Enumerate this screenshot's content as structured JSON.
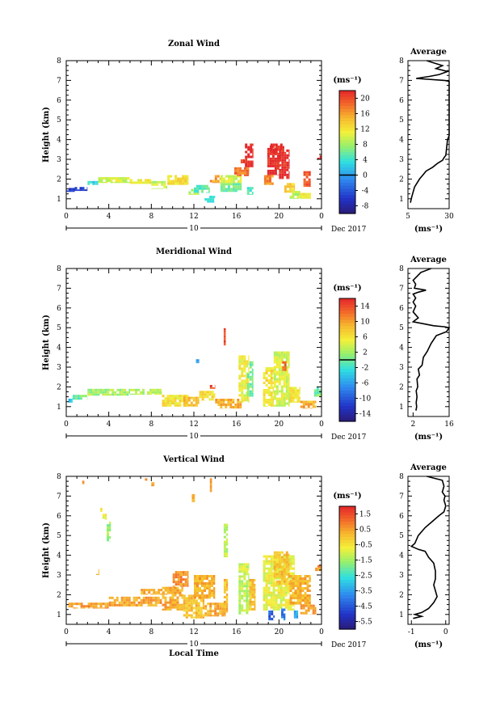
{
  "chart_data": [
    {
      "type": "heatmap",
      "title": "Zonal Wind",
      "ylabel": "Height (km)",
      "xlabel": "",
      "xticks": [
        "0",
        "4",
        "8",
        "12",
        "16",
        "20",
        "0"
      ],
      "xlim": [
        0,
        24
      ],
      "yticks": [
        "1",
        "2",
        "3",
        "4",
        "5",
        "6",
        "7",
        "8"
      ],
      "ylim": [
        0.5,
        8
      ],
      "day_label": "10",
      "month_label": "Dec 2017",
      "colorbar": {
        "unit": "(ms⁻¹)",
        "ticks": [
          "20",
          "16",
          "12",
          "8",
          "4",
          "0",
          "-4",
          "-8"
        ],
        "range": [
          -10,
          22
        ],
        "zero": 0
      },
      "profile": {
        "title": "Average",
        "xticks": [
          "5",
          "30"
        ],
        "xlim": [
          5,
          30
        ],
        "unit": "(ms⁻¹)",
        "points": [
          [
            16.4,
            8.0
          ],
          [
            20,
            7.9
          ],
          [
            26,
            7.75
          ],
          [
            22,
            7.6
          ],
          [
            29,
            7.45
          ],
          [
            24,
            7.3
          ],
          [
            18,
            7.2
          ],
          [
            10,
            7.1
          ],
          [
            27,
            7.0
          ],
          [
            30,
            6.95
          ],
          [
            30,
            6.8
          ],
          [
            30,
            6.5
          ],
          [
            30,
            6.0
          ],
          [
            30,
            5.0
          ],
          [
            30,
            4.2
          ],
          [
            29,
            4.0
          ],
          [
            28.5,
            3.6
          ],
          [
            28,
            3.2
          ],
          [
            27,
            3.1
          ],
          [
            26,
            2.95
          ],
          [
            23,
            2.8
          ],
          [
            20,
            2.6
          ],
          [
            16,
            2.4
          ],
          [
            14,
            2.2
          ],
          [
            12,
            2.0
          ],
          [
            9,
            1.6
          ],
          [
            8,
            1.3
          ],
          [
            7,
            1.0
          ],
          [
            6.5,
            0.8
          ]
        ]
      },
      "patches": [
        {
          "x0": 0.0,
          "x1": 0.8,
          "y0": 1.35,
          "y1": 1.55,
          "v": -6
        },
        {
          "x0": 0.8,
          "x1": 2.0,
          "y0": 1.4,
          "y1": 1.6,
          "v": -6
        },
        {
          "x0": 2.0,
          "x1": 3.0,
          "y0": 1.7,
          "y1": 1.9,
          "v": 3
        },
        {
          "x0": 3.0,
          "x1": 6.0,
          "y0": 1.8,
          "y1": 2.1,
          "v": 10
        },
        {
          "x0": 6.0,
          "x1": 8.0,
          "y0": 1.75,
          "y1": 2.0,
          "v": 11
        },
        {
          "x0": 8.0,
          "x1": 9.5,
          "y0": 1.5,
          "y1": 1.9,
          "v": 9
        },
        {
          "x0": 9.5,
          "x1": 11.5,
          "y0": 1.7,
          "y1": 2.2,
          "v": 12
        },
        {
          "x0": 11.5,
          "x1": 12.5,
          "y0": 1.2,
          "y1": 1.5,
          "v": 9
        },
        {
          "x0": 12.0,
          "x1": 13.5,
          "y0": 1.3,
          "y1": 1.7,
          "v": 5
        },
        {
          "x0": 13.0,
          "x1": 14.0,
          "y0": 0.8,
          "y1": 1.15,
          "v": 3
        },
        {
          "x0": 13.5,
          "x1": 14.5,
          "y0": 1.8,
          "y1": 2.2,
          "v": 16
        },
        {
          "x0": 14.5,
          "x1": 16.5,
          "y0": 1.35,
          "y1": 1.8,
          "v": 6
        },
        {
          "x0": 14.5,
          "x1": 16.5,
          "y0": 1.8,
          "y1": 2.2,
          "v": 10
        },
        {
          "x0": 15.8,
          "x1": 17.2,
          "y0": 2.15,
          "y1": 2.6,
          "v": 18
        },
        {
          "x0": 17.0,
          "x1": 17.6,
          "y0": 1.2,
          "y1": 1.6,
          "v": 5
        },
        {
          "x0": 16.8,
          "x1": 17.6,
          "y0": 2.6,
          "y1": 3.8,
          "v": 22
        },
        {
          "x0": 16.4,
          "x1": 16.8,
          "y0": 2.8,
          "y1": 3.0,
          "v": 20
        },
        {
          "x0": 18.6,
          "x1": 19.5,
          "y0": 1.7,
          "y1": 2.2,
          "v": 17
        },
        {
          "x0": 18.9,
          "x1": 20.1,
          "y0": 2.2,
          "y1": 3.7,
          "v": 22
        },
        {
          "x0": 19.2,
          "x1": 20.5,
          "y0": 3.3,
          "y1": 3.8,
          "v": 22
        },
        {
          "x0": 20.0,
          "x1": 21.0,
          "y0": 2.0,
          "y1": 3.5,
          "v": 22
        },
        {
          "x0": 20.5,
          "x1": 21.5,
          "y0": 1.3,
          "y1": 1.8,
          "v": 13
        },
        {
          "x0": 21.0,
          "x1": 22.0,
          "y0": 1.0,
          "y1": 1.4,
          "v": 9
        },
        {
          "x0": 22.0,
          "x1": 23.0,
          "y0": 1.0,
          "y1": 1.3,
          "v": 11
        },
        {
          "x0": 22.3,
          "x1": 23.0,
          "y0": 1.6,
          "y1": 2.4,
          "v": 19
        },
        {
          "x0": 23.6,
          "x1": 24.0,
          "y0": 3.0,
          "y1": 3.2,
          "v": 22
        }
      ]
    },
    {
      "type": "heatmap",
      "title": "Meridional Wind",
      "ylabel": "Height (km)",
      "xlabel": "",
      "xticks": [
        "0",
        "4",
        "8",
        "12",
        "16",
        "20",
        "0"
      ],
      "xlim": [
        0,
        24
      ],
      "yticks": [
        "1",
        "2",
        "3",
        "4",
        "5",
        "6",
        "7",
        "8"
      ],
      "ylim": [
        0.5,
        8
      ],
      "day_label": "10",
      "month_label": "Dec 2017",
      "colorbar": {
        "unit": "(ms⁻¹)",
        "ticks": [
          "14",
          "10",
          "6",
          "2",
          "-2",
          "-6",
          "-10",
          "-14"
        ],
        "range": [
          -16,
          16
        ],
        "zero": 0
      },
      "profile": {
        "title": "Average",
        "xticks": [
          "2",
          "16"
        ],
        "xlim": [
          0,
          16
        ],
        "unit": "(ms⁻¹)",
        "points": [
          [
            9,
            8.0
          ],
          [
            5,
            7.8
          ],
          [
            3.5,
            7.6
          ],
          [
            2,
            7.4
          ],
          [
            3,
            7.2
          ],
          [
            2.5,
            7.0
          ],
          [
            7,
            6.9
          ],
          [
            4,
            6.8
          ],
          [
            2,
            6.7
          ],
          [
            3,
            6.5
          ],
          [
            2,
            6.3
          ],
          [
            3,
            6.1
          ],
          [
            2,
            5.8
          ],
          [
            4,
            5.5
          ],
          [
            2,
            5.3
          ],
          [
            6,
            5.2
          ],
          [
            10,
            5.1
          ],
          [
            14,
            5.05
          ],
          [
            16,
            5.0
          ],
          [
            15,
            4.8
          ],
          [
            11,
            4.6
          ],
          [
            9,
            4.2
          ],
          [
            7.5,
            3.8
          ],
          [
            6,
            3.5
          ],
          [
            5.5,
            3.1
          ],
          [
            4,
            2.9
          ],
          [
            4.5,
            2.6
          ],
          [
            3.5,
            2.4
          ],
          [
            3.8,
            2.0
          ],
          [
            3.2,
            1.8
          ],
          [
            3.5,
            1.5
          ],
          [
            3.2,
            1.2
          ],
          [
            3.4,
            1.0
          ],
          [
            3.1,
            0.8
          ]
        ]
      },
      "patches": [
        {
          "x0": 0.2,
          "x1": 0.6,
          "y0": 1.2,
          "y1": 1.4,
          "v": -4
        },
        {
          "x0": 0.6,
          "x1": 2.0,
          "y0": 1.35,
          "y1": 1.6,
          "v": 0
        },
        {
          "x0": 2.0,
          "x1": 6.0,
          "y0": 1.55,
          "y1": 1.9,
          "v": 2
        },
        {
          "x0": 6.0,
          "x1": 9.0,
          "y0": 1.6,
          "y1": 1.9,
          "v": 3
        },
        {
          "x0": 9.0,
          "x1": 11.5,
          "y0": 1.0,
          "y1": 1.6,
          "v": 6
        },
        {
          "x0": 11.0,
          "x1": 12.5,
          "y0": 1.0,
          "y1": 1.5,
          "v": 8
        },
        {
          "x0": 12.5,
          "x1": 14.0,
          "y0": 1.3,
          "y1": 1.8,
          "v": 6
        },
        {
          "x0": 13.5,
          "x1": 14.0,
          "y0": 1.9,
          "y1": 2.1,
          "v": 14
        },
        {
          "x0": 14.0,
          "x1": 16.5,
          "y0": 0.9,
          "y1": 1.4,
          "v": 9
        },
        {
          "x0": 12.2,
          "x1": 12.5,
          "y0": 3.2,
          "y1": 3.4,
          "v": -6
        },
        {
          "x0": 14.8,
          "x1": 15.0,
          "y0": 4.1,
          "y1": 5.1,
          "v": 14
        },
        {
          "x0": 16.2,
          "x1": 17.2,
          "y0": 1.2,
          "y1": 3.6,
          "v": 5
        },
        {
          "x0": 17.0,
          "x1": 17.6,
          "y0": 1.5,
          "y1": 3.3,
          "v": 0
        },
        {
          "x0": 18.5,
          "x1": 19.5,
          "y0": 1.0,
          "y1": 3.0,
          "v": 6
        },
        {
          "x0": 19.5,
          "x1": 21.0,
          "y0": 1.0,
          "y1": 3.8,
          "v": 4
        },
        {
          "x0": 20.3,
          "x1": 20.7,
          "y0": 2.8,
          "y1": 3.3,
          "v": 13
        },
        {
          "x0": 21.0,
          "x1": 22.0,
          "y0": 1.2,
          "y1": 2.0,
          "v": 6
        },
        {
          "x0": 22.0,
          "x1": 23.5,
          "y0": 0.9,
          "y1": 1.3,
          "v": 9
        },
        {
          "x0": 23.3,
          "x1": 24.0,
          "y0": 1.5,
          "y1": 2.0,
          "v": 0
        }
      ]
    },
    {
      "type": "heatmap",
      "title": "Vertical Wind",
      "ylabel": "Height (km)",
      "xlabel": "Local Time",
      "xticks": [
        "0",
        "4",
        "8",
        "12",
        "16",
        "20",
        "0"
      ],
      "xlim": [
        0,
        24
      ],
      "yticks": [
        "1",
        "2",
        "3",
        "4",
        "5",
        "6",
        "7",
        "8"
      ],
      "ylim": [
        0.5,
        8
      ],
      "day_label": "10",
      "month_label": "Dec 2017",
      "colorbar": {
        "unit": "(ms⁻¹)",
        "ticks": [
          "1.5",
          "0.5",
          "-0.5",
          "-1.5",
          "-2.5",
          "-3.5",
          "-4.5",
          "-5.5"
        ],
        "range": [
          -6,
          2
        ],
        "zero": null
      },
      "profile": {
        "title": "Average",
        "xticks": [
          "-1",
          "0"
        ],
        "xlim": [
          -1.1,
          0.1
        ],
        "unit": "(ms⁻¹)",
        "points": [
          [
            -0.55,
            8.0
          ],
          [
            -0.1,
            7.8
          ],
          [
            -0.05,
            7.5
          ],
          [
            -0.1,
            7.2
          ],
          [
            -0.02,
            7.0
          ],
          [
            -0.05,
            6.8
          ],
          [
            0.0,
            6.5
          ],
          [
            -0.05,
            6.2
          ],
          [
            -0.2,
            6.0
          ],
          [
            -0.4,
            5.7
          ],
          [
            -0.6,
            5.4
          ],
          [
            -0.8,
            5.0
          ],
          [
            -0.9,
            4.6
          ],
          [
            -1.0,
            4.45
          ],
          [
            -0.8,
            4.3
          ],
          [
            -0.6,
            4.2
          ],
          [
            -0.5,
            3.9
          ],
          [
            -0.35,
            3.6
          ],
          [
            -0.3,
            3.2
          ],
          [
            -0.3,
            2.8
          ],
          [
            -0.35,
            2.5
          ],
          [
            -0.3,
            2.2
          ],
          [
            -0.25,
            1.9
          ],
          [
            -0.35,
            1.6
          ],
          [
            -0.5,
            1.3
          ],
          [
            -0.7,
            1.1
          ],
          [
            -0.9,
            1.0
          ],
          [
            -0.7,
            0.9
          ],
          [
            -0.95,
            0.8
          ]
        ]
      },
      "patches": [
        {
          "x0": 1.5,
          "x1": 1.7,
          "y0": 7.6,
          "y1": 7.9,
          "v": 0.5
        },
        {
          "x0": 7.4,
          "x1": 7.7,
          "y0": 7.7,
          "y1": 7.9,
          "v": 0.5
        },
        {
          "x0": 8.0,
          "x1": 8.3,
          "y0": 7.5,
          "y1": 7.7,
          "v": 0.5
        },
        {
          "x0": 11.8,
          "x1": 12.1,
          "y0": 6.7,
          "y1": 7.1,
          "v": 0.5
        },
        {
          "x0": 13.5,
          "x1": 13.7,
          "y0": 7.2,
          "y1": 7.9,
          "v": 0.5
        },
        {
          "x0": 3.2,
          "x1": 3.4,
          "y0": 6.2,
          "y1": 6.4,
          "v": -0.8
        },
        {
          "x0": 3.4,
          "x1": 3.8,
          "y0": 5.8,
          "y1": 6.1,
          "v": -0.8
        },
        {
          "x0": 3.8,
          "x1": 4.2,
          "y0": 4.7,
          "y1": 5.7,
          "v": -1.5
        },
        {
          "x0": 2.8,
          "x1": 3.1,
          "y0": 3.0,
          "y1": 3.3,
          "v": 0.4
        },
        {
          "x0": 0.2,
          "x1": 4.0,
          "y0": 1.3,
          "y1": 1.6,
          "v": 0.5
        },
        {
          "x0": 4.0,
          "x1": 9.0,
          "y0": 1.4,
          "y1": 1.9,
          "v": 0.4
        },
        {
          "x0": 7.0,
          "x1": 9.5,
          "y0": 2.0,
          "y1": 2.3,
          "v": 0.3
        },
        {
          "x0": 9.0,
          "x1": 11.0,
          "y0": 1.2,
          "y1": 2.4,
          "v": 0.3
        },
        {
          "x0": 10.0,
          "x1": 11.5,
          "y0": 2.4,
          "y1": 3.2,
          "v": 0.6
        },
        {
          "x0": 11.0,
          "x1": 13.0,
          "y0": 0.8,
          "y1": 2.0,
          "v": 0.0
        },
        {
          "x0": 12.0,
          "x1": 14.0,
          "y0": 1.8,
          "y1": 3.0,
          "v": 0.3
        },
        {
          "x0": 13.0,
          "x1": 15.0,
          "y0": 0.9,
          "y1": 1.6,
          "v": 0.3
        },
        {
          "x0": 14.8,
          "x1": 15.2,
          "y0": 3.9,
          "y1": 5.6,
          "v": -1.2
        },
        {
          "x0": 14.8,
          "x1": 15.2,
          "y0": 1.1,
          "y1": 2.8,
          "v": 0.1
        },
        {
          "x0": 16.2,
          "x1": 17.2,
          "y0": 1.0,
          "y1": 3.6,
          "v": -1.2
        },
        {
          "x0": 17.2,
          "x1": 17.8,
          "y0": 1.2,
          "y1": 2.8,
          "v": 0.0
        },
        {
          "x0": 18.5,
          "x1": 21.5,
          "y0": 1.2,
          "y1": 4.0,
          "v": -0.8
        },
        {
          "x0": 19.5,
          "x1": 21.0,
          "y0": 2.5,
          "y1": 4.2,
          "v": 0.0
        },
        {
          "x0": 19.0,
          "x1": 19.6,
          "y0": 0.7,
          "y1": 1.2,
          "v": -4.5
        },
        {
          "x0": 20.2,
          "x1": 20.6,
          "y0": 0.7,
          "y1": 1.3,
          "v": -4.0
        },
        {
          "x0": 21.4,
          "x1": 21.8,
          "y0": 0.8,
          "y1": 1.2,
          "v": -3.5
        },
        {
          "x0": 21.0,
          "x1": 23.0,
          "y0": 1.5,
          "y1": 3.0,
          "v": 0.2
        },
        {
          "x0": 23.4,
          "x1": 24.0,
          "y0": 3.2,
          "y1": 3.5,
          "v": 0.6
        },
        {
          "x0": 22.0,
          "x1": 23.5,
          "y0": 1.0,
          "y1": 1.5,
          "v": 0.4
        }
      ]
    }
  ]
}
